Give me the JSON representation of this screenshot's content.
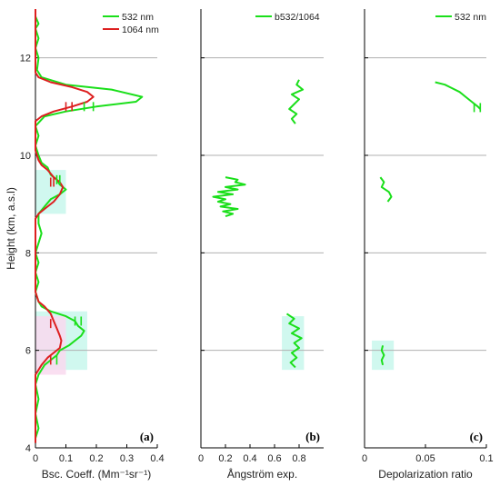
{
  "colors": {
    "green": "#1adf1a",
    "red": "#dd1f1f",
    "olive": "#7a9a1a",
    "olive_dark": "#6a4d14",
    "cyan_shade": "#c8f7ec",
    "pink_shade": "#f9d9ee",
    "gridline": "#b0b0b0",
    "axis": "#000000"
  },
  "y_axis": {
    "label": "Height (km, a.s.l)",
    "range": [
      4,
      13
    ],
    "ticks": [
      4,
      6,
      8,
      10,
      12
    ],
    "tick_labels": [
      "4",
      "6",
      "8",
      "10",
      "12"
    ],
    "gridlines_at": [
      6,
      8,
      10,
      12
    ]
  },
  "chart_data": [
    {
      "panel": "(a)",
      "type": "line",
      "xlabel": "Bsc. Coeff. (Mm⁻¹sr⁻¹)",
      "xlim": [
        0,
        0.4
      ],
      "xticks": [
        0,
        0.1,
        0.2,
        0.3,
        0.4
      ],
      "xtick_labels": [
        "0",
        "0.1",
        "0.2",
        "0.3",
        "0.4"
      ],
      "legend": {
        "placement": "top-right",
        "entries": [
          "532 nm",
          "1064 nm"
        ]
      },
      "series": [
        {
          "name": "532 nm",
          "color": "green",
          "points": [
            [
              0.0,
              13.0
            ],
            [
              0.0,
              12.85
            ],
            [
              0.01,
              12.7
            ],
            [
              0.0,
              12.6
            ],
            [
              0.01,
              12.4
            ],
            [
              0.0,
              12.2
            ],
            [
              0.01,
              12.0
            ],
            [
              0.005,
              11.75
            ],
            [
              0.02,
              11.6
            ],
            [
              0.1,
              11.45
            ],
            [
              0.25,
              11.35
            ],
            [
              0.35,
              11.2
            ],
            [
              0.33,
              11.1
            ],
            [
              0.2,
              11.0
            ],
            [
              0.1,
              10.9
            ],
            [
              0.03,
              10.8
            ],
            [
              0.0,
              10.6
            ],
            [
              0.01,
              10.4
            ],
            [
              0.0,
              10.2
            ],
            [
              0.01,
              10.0
            ],
            [
              0.02,
              9.85
            ],
            [
              0.04,
              9.75
            ],
            [
              0.05,
              9.6
            ],
            [
              0.07,
              9.5
            ],
            [
              0.08,
              9.4
            ],
            [
              0.1,
              9.3
            ],
            [
              0.08,
              9.2
            ],
            [
              0.05,
              9.1
            ],
            [
              0.03,
              8.95
            ],
            [
              0.01,
              8.8
            ],
            [
              0.01,
              8.6
            ],
            [
              0.02,
              8.4
            ],
            [
              0.01,
              8.2
            ],
            [
              0.0,
              8.0
            ],
            [
              0.01,
              7.8
            ],
            [
              0.0,
              7.6
            ],
            [
              0.01,
              7.4
            ],
            [
              0.0,
              7.2
            ],
            [
              0.01,
              7.0
            ],
            [
              0.02,
              6.9
            ],
            [
              0.05,
              6.8
            ],
            [
              0.1,
              6.7
            ],
            [
              0.13,
              6.6
            ],
            [
              0.14,
              6.5
            ],
            [
              0.16,
              6.4
            ],
            [
              0.15,
              6.3
            ],
            [
              0.13,
              6.2
            ],
            [
              0.11,
              6.1
            ],
            [
              0.08,
              6.0
            ],
            [
              0.07,
              5.9
            ],
            [
              0.05,
              5.8
            ],
            [
              0.03,
              5.7
            ],
            [
              0.02,
              5.6
            ],
            [
              0.01,
              5.5
            ],
            [
              0.0,
              5.3
            ],
            [
              0.01,
              5.0
            ],
            [
              0.0,
              4.7
            ],
            [
              0.01,
              4.4
            ],
            [
              0.0,
              4.2
            ]
          ]
        },
        {
          "name": "1064 nm",
          "color": "red",
          "points": [
            [
              0.0,
              13.0
            ],
            [
              0.0,
              12.7
            ],
            [
              0.0,
              12.4
            ],
            [
              0.0,
              12.0
            ],
            [
              0.0,
              11.7
            ],
            [
              0.01,
              11.6
            ],
            [
              0.05,
              11.5
            ],
            [
              0.12,
              11.4
            ],
            [
              0.17,
              11.3
            ],
            [
              0.19,
              11.2
            ],
            [
              0.17,
              11.1
            ],
            [
              0.12,
              11.0
            ],
            [
              0.06,
              10.9
            ],
            [
              0.02,
              10.8
            ],
            [
              0.0,
              10.7
            ],
            [
              0.0,
              10.4
            ],
            [
              0.0,
              10.1
            ],
            [
              0.01,
              9.9
            ],
            [
              0.02,
              9.8
            ],
            [
              0.04,
              9.7
            ],
            [
              0.06,
              9.55
            ],
            [
              0.08,
              9.45
            ],
            [
              0.09,
              9.35
            ],
            [
              0.08,
              9.2
            ],
            [
              0.06,
              9.05
            ],
            [
              0.03,
              8.9
            ],
            [
              0.01,
              8.8
            ],
            [
              0.0,
              8.7
            ],
            [
              0.0,
              8.4
            ],
            [
              0.0,
              8.0
            ],
            [
              0.0,
              7.6
            ],
            [
              0.0,
              7.2
            ],
            [
              0.01,
              7.0
            ],
            [
              0.03,
              6.9
            ],
            [
              0.05,
              6.75
            ],
            [
              0.06,
              6.6
            ],
            [
              0.07,
              6.45
            ],
            [
              0.08,
              6.3
            ],
            [
              0.085,
              6.2
            ],
            [
              0.08,
              6.05
            ],
            [
              0.06,
              5.95
            ],
            [
              0.04,
              5.85
            ],
            [
              0.02,
              5.7
            ],
            [
              0.01,
              5.6
            ],
            [
              0.0,
              5.5
            ],
            [
              0.0,
              5.2
            ],
            [
              0.0,
              4.8
            ],
            [
              0.0,
              4.4
            ],
            [
              0.0,
              4.1
            ]
          ]
        }
      ],
      "error_bars": [
        {
          "color": "red",
          "points": [
            [
              0.1,
              11.0
            ],
            [
              0.12,
              11.0
            ],
            [
              0.05,
              9.45
            ],
            [
              0.06,
              9.45
            ],
            [
              0.05,
              6.55
            ],
            [
              0.05,
              5.8
            ]
          ]
        },
        {
          "color": "green",
          "points": [
            [
              0.16,
              11.0
            ],
            [
              0.19,
              11.0
            ],
            [
              0.07,
              9.5
            ],
            [
              0.08,
              9.5
            ],
            [
              0.13,
              6.6
            ],
            [
              0.15,
              6.6
            ],
            [
              0.07,
              5.8
            ]
          ]
        }
      ]
    },
    {
      "panel": "(b)",
      "type": "line",
      "xlabel": "Ångström exp.",
      "xlim": [
        0,
        1
      ],
      "xticks": [
        0,
        0.2,
        0.4,
        0.6,
        0.8
      ],
      "xtick_labels": [
        "0",
        "0.2",
        "0.4",
        "0.6",
        "0.8"
      ],
      "legend": {
        "placement": "top-right",
        "entries": [
          "b532/1064"
        ]
      },
      "series": [
        {
          "name": "b532/1064",
          "color": "green",
          "segments": [
            [
              [
                0.8,
                11.55
              ],
              [
                0.78,
                11.45
              ],
              [
                0.83,
                11.35
              ],
              [
                0.74,
                11.25
              ],
              [
                0.8,
                11.15
              ],
              [
                0.76,
                11.05
              ],
              [
                0.72,
                10.95
              ],
              [
                0.78,
                10.85
              ],
              [
                0.74,
                10.75
              ],
              [
                0.77,
                10.65
              ]
            ],
            [
              [
                0.2,
                9.55
              ],
              [
                0.3,
                9.5
              ],
              [
                0.28,
                9.45
              ],
              [
                0.36,
                9.4
              ],
              [
                0.2,
                9.35
              ],
              [
                0.3,
                9.3
              ],
              [
                0.14,
                9.25
              ],
              [
                0.26,
                9.2
              ],
              [
                0.1,
                9.15
              ],
              [
                0.2,
                9.1
              ],
              [
                0.14,
                9.05
              ],
              [
                0.24,
                9.0
              ],
              [
                0.16,
                8.95
              ],
              [
                0.3,
                8.9
              ],
              [
                0.18,
                8.85
              ],
              [
                0.26,
                8.8
              ],
              [
                0.2,
                8.75
              ]
            ],
            [
              [
                0.7,
                6.75
              ],
              [
                0.76,
                6.65
              ],
              [
                0.72,
                6.55
              ],
              [
                0.8,
                6.45
              ],
              [
                0.74,
                6.35
              ],
              [
                0.82,
                6.25
              ],
              [
                0.76,
                6.15
              ],
              [
                0.8,
                6.05
              ],
              [
                0.74,
                5.95
              ],
              [
                0.78,
                5.85
              ],
              [
                0.73,
                5.75
              ],
              [
                0.77,
                5.65
              ]
            ]
          ]
        }
      ]
    },
    {
      "panel": "(c)",
      "type": "line",
      "xlabel": "Depolarization ratio",
      "xlim": [
        0,
        0.1
      ],
      "xticks": [
        0,
        0.05,
        0.1
      ],
      "xtick_labels": [
        "0",
        "0.05",
        "0.1"
      ],
      "legend": {
        "placement": "top-right",
        "entries": [
          "532 nm"
        ]
      },
      "series": [
        {
          "name": "532 nm",
          "color": "green",
          "segments": [
            [
              [
                0.058,
                11.5
              ],
              [
                0.066,
                11.45
              ],
              [
                0.07,
                11.4
              ],
              [
                0.078,
                11.3
              ],
              [
                0.083,
                11.2
              ],
              [
                0.088,
                11.1
              ],
              [
                0.093,
                11.0
              ],
              [
                0.095,
                10.95
              ]
            ],
            [
              [
                0.013,
                9.55
              ],
              [
                0.016,
                9.45
              ],
              [
                0.014,
                9.35
              ],
              [
                0.02,
                9.25
              ],
              [
                0.022,
                9.15
              ],
              [
                0.019,
                9.05
              ]
            ],
            [
              [
                0.015,
                6.1
              ],
              [
                0.014,
                6.0
              ],
              [
                0.016,
                5.9
              ],
              [
                0.014,
                5.8
              ],
              [
                0.015,
                5.7
              ]
            ]
          ]
        }
      ],
      "error_bars": [
        {
          "color": "green",
          "points": [
            [
              0.09,
              10.98
            ],
            [
              0.095,
              10.98
            ]
          ]
        }
      ]
    }
  ]
}
